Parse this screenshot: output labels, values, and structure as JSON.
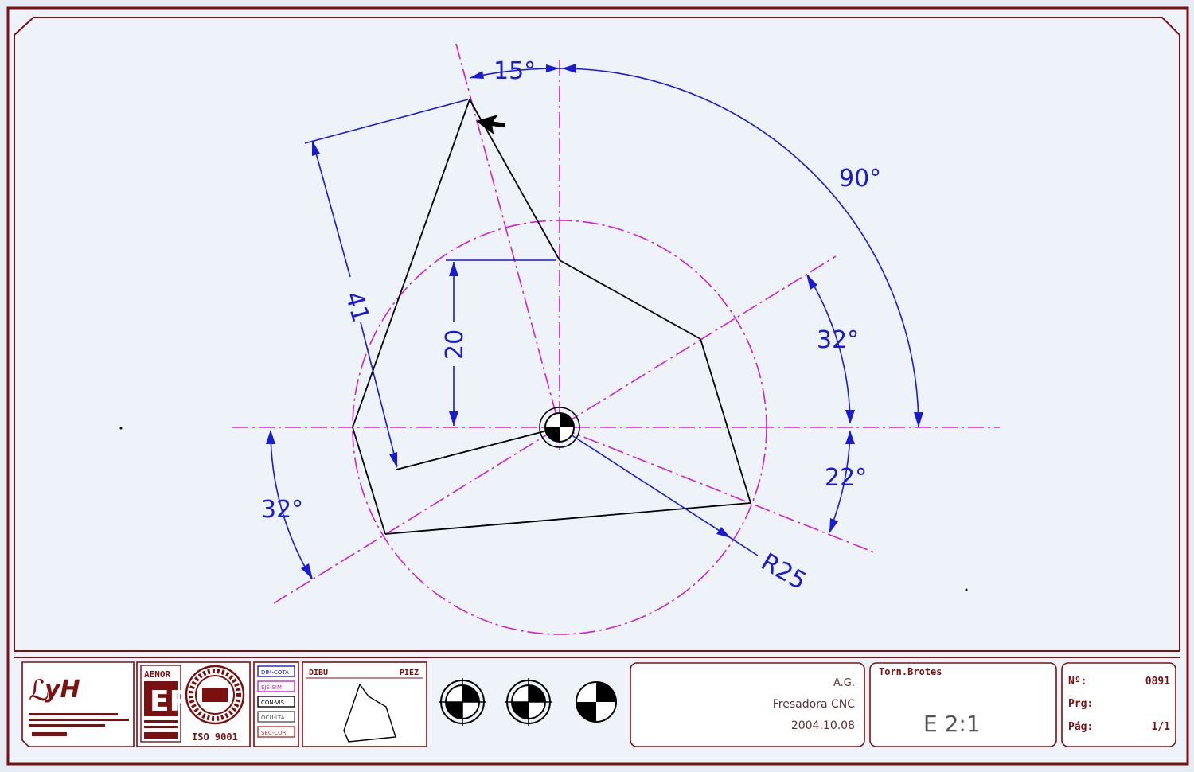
{
  "drawing": {
    "dimensions": {
      "angle_top": "15°",
      "angle_big": "90°",
      "angle_right_upper": "32°",
      "angle_right_lower": "22°",
      "angle_left": "32°",
      "length_side": "41",
      "height": "20",
      "radius": "R25"
    }
  },
  "title_block": {
    "logo": {
      "caption": ""
    },
    "cert": {
      "brand": "AENOR",
      "mark": "ER",
      "iso": "ISO 9001"
    },
    "legend": {
      "items": [
        "DIM-COTA",
        "EJE-SIM",
        "CON-VIS",
        "OCU-LTA",
        "SEC-COR"
      ]
    },
    "preview": {
      "left_label": "DIBU",
      "right_label": "PIEZ"
    },
    "info": {
      "author": "A.G.",
      "machine": "Fresadora CNC",
      "date": "2004.10.08"
    },
    "piece": {
      "name": "Torn.Brotes",
      "scale": "E  2:1"
    },
    "pages": {
      "n_label": "Nº:",
      "n_value": "0891",
      "prg_label": "Prg:",
      "pag_label": "Pág:",
      "pag_value": "1/1"
    }
  },
  "colors": {
    "frame": "#7a1010",
    "dimension": "#1a1ad0",
    "centerline": "#cc22cc",
    "outline": "#000000",
    "background": "#e6ebf4"
  }
}
